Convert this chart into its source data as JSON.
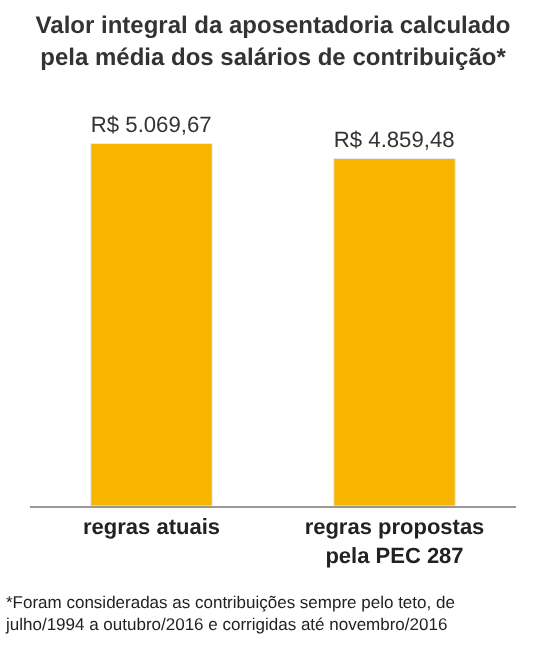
{
  "chart_data": {
    "type": "bar",
    "title": "Valor integral da aposentadoria calculado\npela média dos salários de contribuição*",
    "categories": [
      "regras atuais",
      "regras propostas\npela PEC 287"
    ],
    "values": [
      5069.67,
      4859.48
    ],
    "value_labels": [
      "R$ 5.069,67",
      "R$ 4.859,48"
    ],
    "color": "#f7b500",
    "annotations": [
      "*Foram consideradas as contribuições sempre pelo teto, de\njulho/1994 a outubro/2016 e corrigidas até novembro/2016"
    ]
  }
}
